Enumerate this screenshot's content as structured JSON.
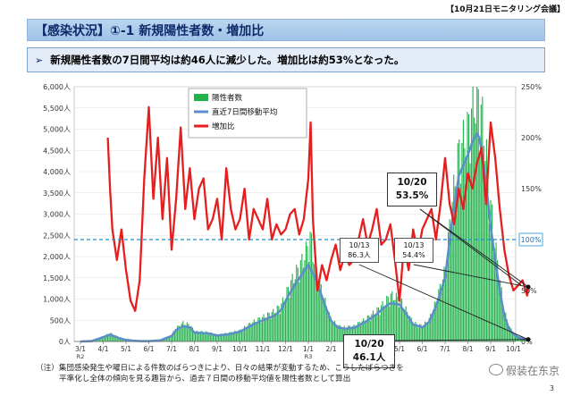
{
  "header": {
    "meeting_tag": "【10月21日モニタリング会議】"
  },
  "title": "【感染状況】①-1 新規陽性者数・増加比",
  "summary": {
    "arrow": "➢",
    "text": "新規陽性者数の7日間平均は約46人に減少した。増加比は約53%となった。"
  },
  "chart_data": {
    "type": "bar+line",
    "left_axis": {
      "ticks": [
        "0人",
        "500人",
        "1,000人",
        "1,500人",
        "2,000人",
        "2,500人",
        "3,000人",
        "3,500人",
        "4,000人",
        "4,500人",
        "5,000人",
        "5,500人",
        "6,000人"
      ],
      "ylim": [
        0,
        6000
      ]
    },
    "right_axis": {
      "ticks": [
        "0%",
        "50%",
        "100%",
        "150%",
        "200%",
        "250%"
      ],
      "ylim": [
        0,
        250
      ]
    },
    "x_ticks": [
      {
        "label": "3/1",
        "sub": "R2"
      },
      {
        "label": "4/1",
        "sub": ""
      },
      {
        "label": "5/1",
        "sub": ""
      },
      {
        "label": "6/1",
        "sub": ""
      },
      {
        "label": "7/1",
        "sub": ""
      },
      {
        "label": "8/1",
        "sub": ""
      },
      {
        "label": "9/1",
        "sub": ""
      },
      {
        "label": "10/1",
        "sub": ""
      },
      {
        "label": "11/1",
        "sub": ""
      },
      {
        "label": "12/1",
        "sub": ""
      },
      {
        "label": "1/1",
        "sub": "R3"
      },
      {
        "label": "2/1",
        "sub": ""
      },
      {
        "label": "3/1",
        "sub": ""
      },
      {
        "label": "4/1",
        "sub": ""
      },
      {
        "label": "5/1",
        "sub": ""
      },
      {
        "label": "6/1",
        "sub": ""
      },
      {
        "label": "7/1",
        "sub": ""
      },
      {
        "label": "8/1",
        "sub": ""
      },
      {
        "label": "9/1",
        "sub": ""
      },
      {
        "label": "10/1",
        "sub": ""
      }
    ],
    "reference_line": {
      "value": 100,
      "label": "100%"
    },
    "legend": [
      {
        "name": "陽性者数",
        "color": "#22b14c",
        "kind": "bar"
      },
      {
        "name": "直近7日間移動平均",
        "color": "#5b8fc9",
        "kind": "line"
      },
      {
        "name": "増加比",
        "color": "#e61e1e",
        "kind": "line"
      }
    ],
    "series": [
      {
        "name": "陽性者数",
        "color": "#22b14c",
        "x": [
          0,
          0.5,
          1,
          1.3,
          1.7,
          2,
          2.3,
          2.7,
          3,
          3.5,
          4,
          4.2,
          4.5,
          4.8,
          5,
          5.3,
          5.6,
          6,
          6.5,
          7,
          7.5,
          8,
          8.5,
          8.8,
          9,
          9.2,
          9.5,
          9.8,
          10,
          10.1,
          10.3,
          10.5,
          10.8,
          11,
          11.3,
          11.6,
          12,
          12.5,
          13,
          13.3,
          13.6,
          14,
          14.3,
          14.6,
          15,
          15.3,
          15.6,
          16,
          16.3,
          16.6,
          17,
          17.2,
          17.4,
          17.5,
          17.6,
          17.7,
          17.8,
          18,
          18.2,
          18.4,
          18.6,
          18.8,
          19,
          19.2,
          19.4,
          19.5,
          19.65
        ],
        "y": [
          0,
          20,
          120,
          190,
          90,
          40,
          20,
          10,
          10,
          30,
          150,
          300,
          420,
          380,
          230,
          220,
          210,
          150,
          190,
          250,
          420,
          550,
          680,
          820,
          1050,
          1300,
          1600,
          1900,
          2200,
          2400,
          1700,
          1300,
          800,
          500,
          350,
          320,
          350,
          500,
          700,
          850,
          1050,
          980,
          700,
          420,
          350,
          500,
          900,
          1600,
          3100,
          4300,
          4800,
          5300,
          5600,
          5400,
          5200,
          4800,
          4300,
          3100,
          2200,
          1400,
          700,
          350,
          200,
          120,
          80,
          55,
          46
        ]
      },
      {
        "name": "直近7日間移動平均",
        "color": "#5b8fc9",
        "x": [
          0,
          0.5,
          1,
          1.3,
          1.7,
          2,
          2.3,
          2.7,
          3,
          3.5,
          4,
          4.2,
          4.5,
          4.8,
          5,
          5.3,
          5.6,
          6,
          6.5,
          7,
          7.5,
          8,
          8.5,
          8.8,
          9,
          9.2,
          9.5,
          9.8,
          10,
          10.1,
          10.3,
          10.5,
          10.8,
          11,
          11.3,
          11.6,
          12,
          12.5,
          13,
          13.3,
          13.6,
          14,
          14.3,
          14.6,
          15,
          15.3,
          15.6,
          16,
          16.3,
          16.6,
          17,
          17.2,
          17.4,
          17.5,
          17.6,
          17.7,
          17.8,
          18,
          18.2,
          18.4,
          18.6,
          18.8,
          19,
          19.2,
          19.4,
          19.5,
          19.65
        ],
        "y": [
          0,
          10,
          100,
          160,
          80,
          35,
          18,
          8,
          8,
          25,
          130,
          270,
          360,
          330,
          210,
          200,
          190,
          140,
          170,
          230,
          380,
          500,
          600,
          740,
          950,
          1150,
          1400,
          1650,
          1800,
          1700,
          1500,
          1200,
          750,
          480,
          330,
          300,
          320,
          460,
          640,
          790,
          900,
          870,
          640,
          400,
          330,
          460,
          820,
          1500,
          2800,
          3900,
          4400,
          4700,
          4900,
          4800,
          4500,
          4100,
          3700,
          2700,
          1900,
          1200,
          600,
          300,
          170,
          100,
          70,
          55,
          46
        ]
      },
      {
        "name": "増加比",
        "color": "#e61e1e",
        "x": [
          1.2,
          1.3,
          1.4,
          1.6,
          1.8,
          2,
          2.2,
          2.4,
          2.6,
          2.8,
          3,
          3.2,
          3.4,
          3.6,
          3.8,
          4,
          4.2,
          4.4,
          4.6,
          4.8,
          5,
          5.2,
          5.4,
          5.6,
          5.8,
          6,
          6.2,
          6.4,
          6.6,
          6.8,
          7,
          7.2,
          7.4,
          7.6,
          7.8,
          8,
          8.2,
          8.4,
          8.6,
          8.8,
          9,
          9.2,
          9.4,
          9.6,
          9.8,
          10,
          10.1,
          10.2,
          10.4,
          10.6,
          10.8,
          11,
          11.2,
          11.4,
          11.6,
          11.8,
          12,
          12.2,
          12.4,
          12.6,
          12.8,
          13,
          13.2,
          13.4,
          13.6,
          13.8,
          14,
          14.2,
          14.4,
          14.6,
          14.8,
          15,
          15.2,
          15.4,
          15.6,
          15.8,
          16,
          16.2,
          16.4,
          16.6,
          16.8,
          17,
          17.2,
          17.4,
          17.6,
          17.8,
          18,
          18.2,
          18.4,
          18.6,
          18.8,
          19,
          19.2,
          19.4,
          19.6,
          19.65
        ],
        "y": [
          200,
          150,
          110,
          80,
          110,
          70,
          40,
          30,
          60,
          160,
          230,
          140,
          200,
          120,
          180,
          90,
          140,
          210,
          130,
          170,
          120,
          150,
          160,
          110,
          120,
          140,
          100,
          170,
          130,
          110,
          120,
          150,
          100,
          130,
          120,
          110,
          140,
          100,
          115,
          105,
          110,
          125,
          130,
          105,
          120,
          160,
          215,
          120,
          50,
          75,
          60,
          80,
          95,
          70,
          85,
          75,
          80,
          100,
          120,
          95,
          110,
          130,
          95,
          100,
          115,
          80,
          40,
          95,
          70,
          110,
          85,
          110,
          120,
          130,
          100,
          135,
          180,
          135,
          115,
          150,
          130,
          165,
          150,
          175,
          190,
          135,
          215,
          180,
          130,
          90,
          65,
          50,
          55,
          60,
          45,
          53.5
        ]
      }
    ]
  },
  "callouts": [
    {
      "date": "10/13",
      "value": "86.3人"
    },
    {
      "date": "10/13",
      "value": "54.4%"
    },
    {
      "date": "10/20",
      "value": "53.5%"
    },
    {
      "date": "10/20",
      "value": "46.1人"
    }
  ],
  "footnote": {
    "line1": "（注）集団感染発生や曜日による件数のばらつきにより、日々の結果が変動するため、こうしたばらつきを",
    "line2": "平準化し全体の傾向を見る趣旨から、過去７日間の移動平均値を陽性者数として算出"
  },
  "watermark": "假装在东京",
  "page_number": "3"
}
